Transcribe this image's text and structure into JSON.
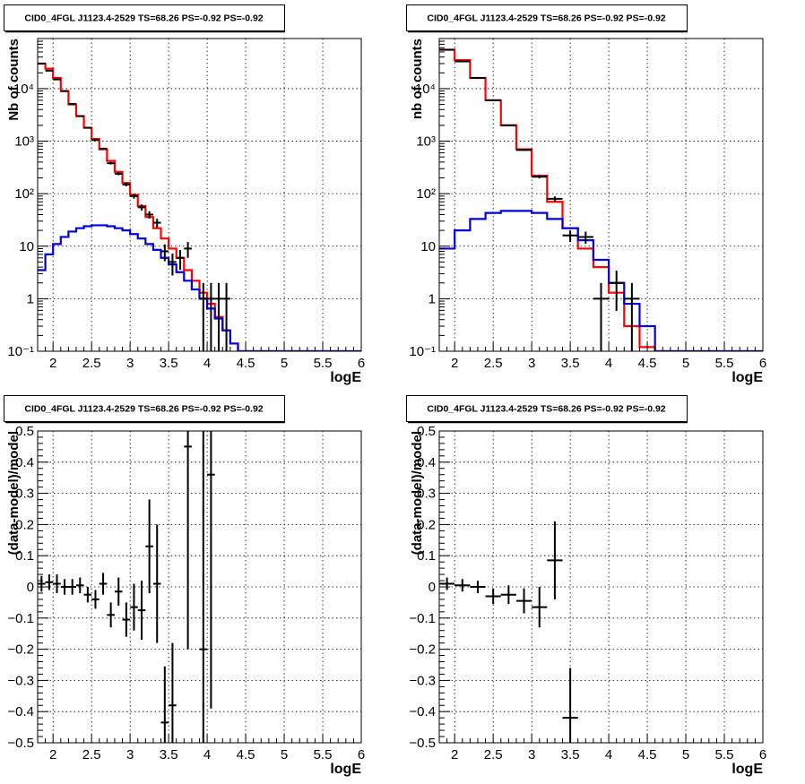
{
  "chart_data": [
    {
      "type": "line",
      "title": "CID0_4FGL J1123.4-2529 TS=68.26 PS=-0.92 PS=-0.92",
      "xlabel": "logE",
      "ylabel": "Nb of counts",
      "xlim": [
        1.8,
        6.0
      ],
      "ylim": [
        0.1,
        90000
      ],
      "yscale": "log",
      "grid": true,
      "x_ticks": [
        2,
        2.5,
        3,
        3.5,
        4,
        4.5,
        5,
        5.5,
        6
      ],
      "x_tick_labels": [
        "2",
        "2.5",
        "3",
        "3.5",
        "4",
        "4.5",
        "5",
        "5.5",
        "6"
      ],
      "y_ticks": [
        0.1,
        1,
        10,
        100,
        1000,
        10000
      ],
      "y_tick_labels": [
        "10⁻¹",
        "1",
        "10",
        "10²",
        "10³",
        "10⁴"
      ],
      "bin_edges": [
        1.8,
        1.9,
        2.0,
        2.1,
        2.2,
        2.3,
        2.4,
        2.5,
        2.6,
        2.7,
        2.8,
        2.9,
        3.0,
        3.1,
        3.2,
        3.3,
        3.4,
        3.5,
        3.6,
        3.7,
        3.8,
        3.9,
        4.0,
        4.1,
        4.2,
        4.3,
        4.4,
        4.5,
        4.6,
        4.7,
        4.8,
        4.9,
        5.0,
        5.1,
        5.2,
        5.3,
        5.4,
        5.5,
        5.6,
        5.7,
        5.8,
        5.9,
        6.0
      ],
      "series": [
        {
          "color": "#ff0000",
          "style": "step",
          "values": [
            30000,
            24000,
            16000,
            9000,
            5000,
            3000,
            1800,
            1100,
            700,
            420,
            260,
            160,
            95,
            58,
            36,
            22,
            14,
            9,
            6,
            3.5,
            2.2,
            1.3,
            0.8,
            0.45,
            0.25,
            0.14,
            0.1,
            0.1,
            0.1,
            0.1,
            0.1,
            0.1,
            0.1,
            0.1,
            0.1,
            0.1,
            0.1,
            0.1,
            0.1,
            0.1,
            0.1,
            0.1
          ]
        },
        {
          "color": "#0000dd",
          "style": "step",
          "values": [
            3.5,
            7,
            11,
            15,
            19,
            22,
            24,
            25,
            25,
            24,
            22,
            20,
            17,
            14,
            11,
            8.5,
            6,
            4.5,
            3.2,
            2.2,
            1.5,
            1,
            0.65,
            0.42,
            0.25,
            0.14,
            0.1,
            0.1,
            0.1,
            0.1,
            0.1,
            0.1,
            0.1,
            0.1,
            0.1,
            0.1,
            0.1,
            0.1,
            0.1,
            0.1,
            0.1,
            0.1
          ]
        }
      ],
      "points": [
        {
          "x": 1.85,
          "y": 30000
        },
        {
          "x": 1.95,
          "y": 22000
        },
        {
          "x": 2.05,
          "y": 15000
        },
        {
          "x": 2.15,
          "y": 9000
        },
        {
          "x": 2.25,
          "y": 5100
        },
        {
          "x": 2.35,
          "y": 3000
        },
        {
          "x": 2.45,
          "y": 1800
        },
        {
          "x": 2.55,
          "y": 1050
        },
        {
          "x": 2.65,
          "y": 720
        },
        {
          "x": 2.75,
          "y": 380
        },
        {
          "x": 2.85,
          "y": 240
        },
        {
          "x": 2.95,
          "y": 150
        },
        {
          "x": 3.05,
          "y": 90
        },
        {
          "x": 3.15,
          "y": 55
        },
        {
          "x": 3.25,
          "y": 40
        },
        {
          "x": 3.35,
          "y": 28
        },
        {
          "x": 3.45,
          "y": 8
        },
        {
          "x": 3.55,
          "y": 5
        },
        {
          "x": 3.65,
          "y": 6
        },
        {
          "x": 3.75,
          "y": 9
        },
        {
          "x": 3.95,
          "y": 1
        },
        {
          "x": 4.05,
          "y": 1
        },
        {
          "x": 4.15,
          "y": 1
        },
        {
          "x": 4.25,
          "y": 1
        }
      ]
    },
    {
      "type": "line",
      "title": "CID0_4FGL J1123.4-2529 TS=68.26 PS=-0.92 PS=-0.92",
      "xlabel": "logE",
      "ylabel": "nb of counts",
      "xlim": [
        1.8,
        6.0
      ],
      "ylim": [
        0.1,
        90000
      ],
      "yscale": "log",
      "grid": true,
      "x_ticks": [
        2,
        2.5,
        3,
        3.5,
        4,
        4.5,
        5,
        5.5,
        6
      ],
      "x_tick_labels": [
        "2",
        "2.5",
        "3",
        "3.5",
        "4",
        "4.5",
        "5",
        "5.5",
        "6"
      ],
      "y_ticks": [
        0.1,
        1,
        10,
        100,
        1000,
        10000
      ],
      "y_tick_labels": [
        "10⁻¹",
        "1",
        "10",
        "10²",
        "10³",
        "10⁴"
      ],
      "bin_edges": [
        1.8,
        2.0,
        2.2,
        2.4,
        2.6,
        2.8,
        3.0,
        3.2,
        3.4,
        3.6,
        3.8,
        4.0,
        4.2,
        4.4,
        4.6,
        4.8,
        5.0,
        5.2,
        5.4,
        5.6,
        5.8,
        6.0
      ],
      "series": [
        {
          "color": "#ff0000",
          "style": "step",
          "values": [
            55000,
            35000,
            16000,
            6000,
            2000,
            700,
            220,
            70,
            22,
            9,
            4,
            1.3,
            0.3,
            0.12,
            0.1,
            0.1,
            0.1,
            0.1,
            0.1,
            0.1,
            0.1
          ]
        },
        {
          "color": "#0000dd",
          "style": "step",
          "values": [
            9,
            20,
            33,
            43,
            47,
            47,
            43,
            33,
            22,
            13,
            5.5,
            2,
            0.8,
            0.3,
            0.1,
            0.1,
            0.1,
            0.1,
            0.1,
            0.1,
            0.1
          ]
        }
      ],
      "points": [
        {
          "x": 1.9,
          "y": 55000
        },
        {
          "x": 2.1,
          "y": 33000
        },
        {
          "x": 2.3,
          "y": 16000
        },
        {
          "x": 2.5,
          "y": 6000
        },
        {
          "x": 2.7,
          "y": 2000
        },
        {
          "x": 2.9,
          "y": 680
        },
        {
          "x": 3.1,
          "y": 210
        },
        {
          "x": 3.3,
          "y": 80
        },
        {
          "x": 3.5,
          "y": 16
        },
        {
          "x": 3.7,
          "y": 15
        },
        {
          "x": 3.9,
          "y": 1
        },
        {
          "x": 4.1,
          "y": 2
        },
        {
          "x": 4.3,
          "y": 1
        }
      ]
    },
    {
      "type": "scatter",
      "title": "CID0_4FGL J1123.4-2529 TS=68.26 PS=-0.92 PS=-0.92",
      "xlabel": "logE",
      "ylabel": "(data-model)/model",
      "xlim": [
        1.8,
        6.0
      ],
      "ylim": [
        -0.5,
        0.5
      ],
      "grid": true,
      "x_ticks": [
        2,
        2.5,
        3,
        3.5,
        4,
        4.5,
        5,
        5.5,
        6
      ],
      "x_tick_labels": [
        "2",
        "2.5",
        "3",
        "3.5",
        "4",
        "4.5",
        "5",
        "5.5",
        "6"
      ],
      "y_ticks": [
        -0.5,
        -0.4,
        -0.3,
        -0.2,
        -0.1,
        0,
        0.1,
        0.2,
        0.3,
        0.4,
        0.5
      ],
      "y_tick_labels": [
        "−0.5",
        "−0.4",
        "−0.3",
        "−0.2",
        "−0.1",
        "0",
        "0.1",
        "0.2",
        "0.3",
        "0.4",
        "0.5"
      ],
      "half_width": 0.05,
      "points": [
        {
          "x": 1.85,
          "y": 0.01,
          "err": 0.025
        },
        {
          "x": 1.95,
          "y": 0.015,
          "err": 0.025
        },
        {
          "x": 2.05,
          "y": 0.01,
          "err": 0.03
        },
        {
          "x": 2.15,
          "y": 0.0,
          "err": 0.025
        },
        {
          "x": 2.25,
          "y": 0.0,
          "err": 0.025
        },
        {
          "x": 2.35,
          "y": 0.005,
          "err": 0.025
        },
        {
          "x": 2.45,
          "y": -0.025,
          "err": 0.025
        },
        {
          "x": 2.55,
          "y": -0.04,
          "err": 0.03
        },
        {
          "x": 2.65,
          "y": 0.01,
          "err": 0.035
        },
        {
          "x": 2.75,
          "y": -0.09,
          "err": 0.04
        },
        {
          "x": 2.85,
          "y": -0.015,
          "err": 0.045
        },
        {
          "x": 2.95,
          "y": -0.105,
          "err": 0.055
        },
        {
          "x": 3.05,
          "y": -0.065,
          "err": 0.075
        },
        {
          "x": 3.15,
          "y": -0.075,
          "err": 0.095
        },
        {
          "x": 3.25,
          "y": 0.13,
          "err": 0.15
        },
        {
          "x": 3.35,
          "y": 0.01,
          "err": 0.19
        },
        {
          "x": 3.45,
          "y": -0.435,
          "err": 0.18
        },
        {
          "x": 3.55,
          "y": -0.38,
          "err": 0.2
        },
        {
          "x": 3.75,
          "y": 0.45,
          "err": 0.65
        },
        {
          "x": 3.95,
          "y": -0.2,
          "err": 0.75
        },
        {
          "x": 4.05,
          "y": 0.36,
          "err": 0.75
        }
      ]
    },
    {
      "type": "scatter",
      "title": "CID0_4FGL J1123.4-2529 TS=68.26 PS=-0.92 PS=-0.92",
      "xlabel": "logE",
      "ylabel": "(data-model)/model",
      "xlim": [
        1.8,
        6.0
      ],
      "ylim": [
        -0.5,
        0.5
      ],
      "grid": true,
      "x_ticks": [
        2,
        2.5,
        3,
        3.5,
        4,
        4.5,
        5,
        5.5,
        6
      ],
      "x_tick_labels": [
        "2",
        "2.5",
        "3",
        "3.5",
        "4",
        "4.5",
        "5",
        "5.5",
        "6"
      ],
      "y_ticks": [
        -0.5,
        -0.4,
        -0.3,
        -0.2,
        -0.1,
        0,
        0.1,
        0.2,
        0.3,
        0.4,
        0.5
      ],
      "y_tick_labels": [
        "−0.5",
        "−0.4",
        "−0.3",
        "−0.2",
        "−0.1",
        "0",
        "0.1",
        "0.2",
        "0.3",
        "0.4",
        "0.5"
      ],
      "half_width": 0.1,
      "points": [
        {
          "x": 1.9,
          "y": 0.01,
          "err": 0.02
        },
        {
          "x": 2.1,
          "y": 0.005,
          "err": 0.02
        },
        {
          "x": 2.3,
          "y": 0.0,
          "err": 0.02
        },
        {
          "x": 2.5,
          "y": -0.03,
          "err": 0.025
        },
        {
          "x": 2.7,
          "y": -0.025,
          "err": 0.03
        },
        {
          "x": 2.9,
          "y": -0.045,
          "err": 0.04
        },
        {
          "x": 3.1,
          "y": -0.065,
          "err": 0.065
        },
        {
          "x": 3.3,
          "y": 0.085,
          "err": 0.125
        },
        {
          "x": 3.5,
          "y": -0.42,
          "err": 0.16
        }
      ]
    }
  ]
}
